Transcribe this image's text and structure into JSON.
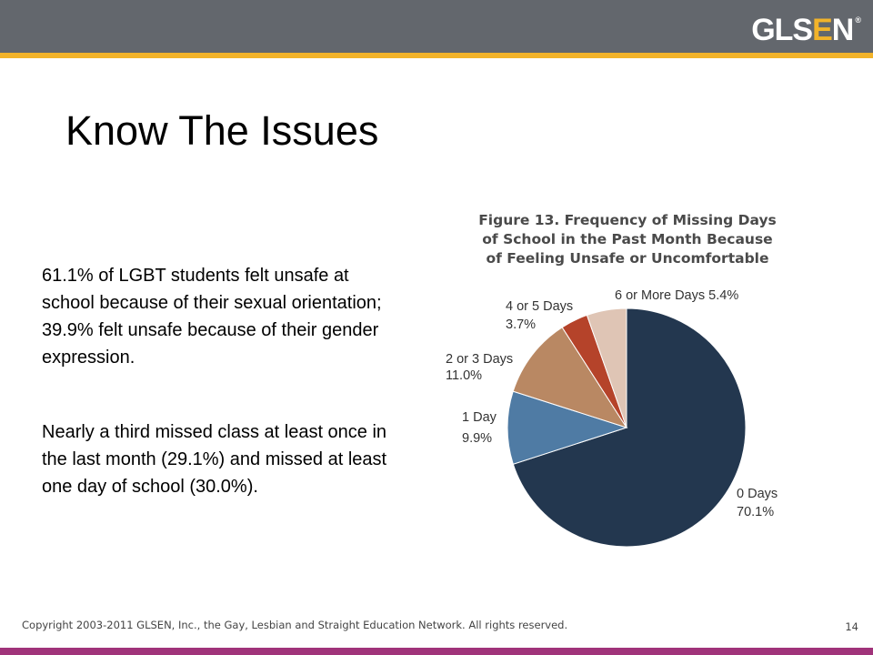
{
  "header": {
    "logo": {
      "pre": "GLS",
      "accent": "E",
      "post": "N",
      "mark": "®"
    },
    "colors": {
      "bar": "#63676d",
      "accent": "#f2b32a",
      "bottom_bar": "#a0337a"
    }
  },
  "slide": {
    "title": "Know The Issues",
    "bullets": [
      "61.1% of LGBT students felt unsafe at school because of their sexual orientation; 39.9% felt unsafe because of their gender expression.",
      "Nearly a third missed class at least once in the last month (29.1%) and missed at least one day of school (30.0%)."
    ]
  },
  "chart_data": {
    "type": "pie",
    "title": "Figure 13. Frequency of Missing Days of School in the Past Month Because of Feeling Unsafe or Uncomfortable",
    "title_lines": [
      "Figure 13. Frequency of Missing Days",
      "of School in the Past Month Because",
      "of Feeling Unsafe or Uncomfortable"
    ],
    "slices": [
      {
        "label": "0 Days",
        "value_text": "70.1%",
        "value": 70.1,
        "color": "#23374f"
      },
      {
        "label": "1 Day",
        "value_text": "9.9%",
        "value": 9.9,
        "color": "#4f7ba4"
      },
      {
        "label": "2 or 3 Days",
        "value_text": "11.0%",
        "value": 11.0,
        "color": "#b98863"
      },
      {
        "label": "4 or 5 Days",
        "value_text": "3.7%",
        "value": 3.7,
        "color": "#b5432a"
      },
      {
        "label": "6 or More Days",
        "value_text": "5.4%",
        "value": 5.4,
        "color": "#dfc5b5"
      }
    ]
  },
  "footer": {
    "copyright": "Copyright 2003-2011 GLSEN, Inc., the Gay, Lesbian and Straight Education Network. All rights reserved.",
    "page_number": "14"
  }
}
